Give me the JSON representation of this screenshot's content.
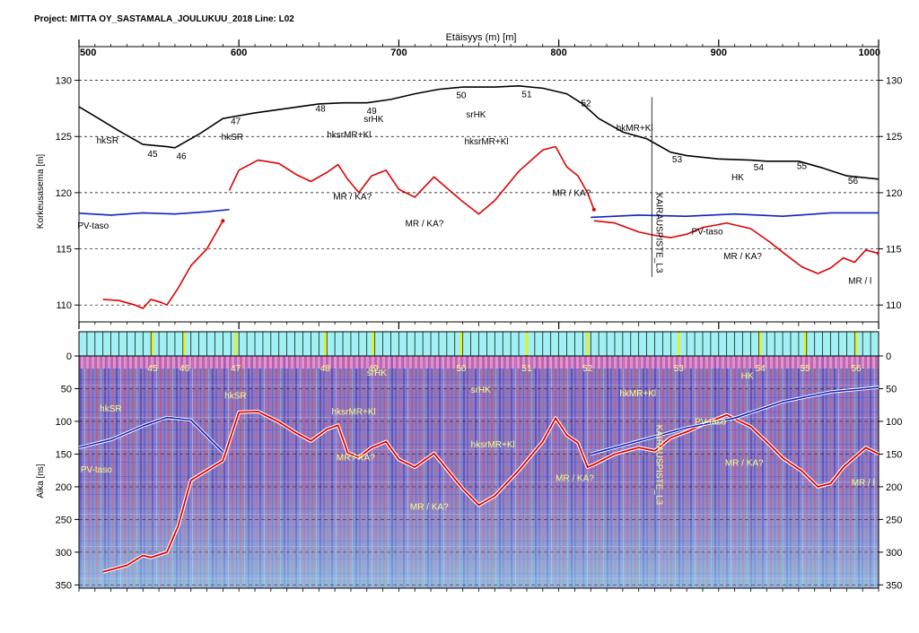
{
  "title": "Project: MITTA OY_SASTAMALA_JOULUKUU_2018  Line: L02",
  "colors": {
    "terrain": "#000000",
    "bedrock": "#e00000",
    "water_table": "#1020c0",
    "radar_pos": "#3a3ad0",
    "radar_neg": "#e83a3a",
    "radar_bg": "#8c7fc0",
    "marker_bar": "#a0f0f4"
  },
  "chart_data": [
    {
      "type": "line",
      "title": "Project: MITTA OY_SASTAMALA_JOULUKUU_2018  Line: L02",
      "xlabel": "Etäisyys (m) [m]",
      "ylabel": "Korkeusasema [m]",
      "xlim": [
        500,
        1000
      ],
      "ylim": [
        108.5,
        133
      ],
      "xticks": [
        500,
        600,
        700,
        800,
        900,
        1000
      ],
      "yticks": [
        110,
        115,
        120,
        125,
        130
      ],
      "grid": "horizontal dashed",
      "series": [
        {
          "role": "terrain",
          "x": [
            497,
            510,
            525,
            540,
            555,
            560,
            575,
            590,
            610,
            630,
            650,
            665,
            680,
            695,
            710,
            725,
            740,
            760,
            775,
            790,
            805,
            815,
            825,
            840,
            855,
            870,
            880,
            900,
            920,
            930,
            950,
            965,
            980,
            1000
          ],
          "y": [
            127.9,
            126.8,
            125.5,
            124.3,
            124.1,
            124.0,
            125.2,
            126.6,
            127.1,
            127.5,
            127.9,
            128.0,
            128.0,
            128.3,
            128.8,
            129.2,
            129.4,
            129.4,
            129.5,
            129.3,
            128.8,
            127.9,
            126.6,
            125.4,
            124.8,
            123.6,
            123.3,
            123.0,
            122.9,
            122.8,
            122.8,
            122.2,
            121.5,
            121.2
          ]
        },
        {
          "role": "water_table",
          "x": [
            497,
            520,
            540,
            560,
            580,
            594
          ],
          "y": [
            118.2,
            118.0,
            118.2,
            118.1,
            118.3,
            118.5
          ]
        },
        {
          "role": "water_table",
          "x": [
            820,
            850,
            880,
            910,
            940,
            970,
            1000
          ],
          "y": [
            117.8,
            118.0,
            117.9,
            118.1,
            117.9,
            118.2,
            118.2
          ]
        },
        {
          "role": "bedrock",
          "x": [
            515,
            525,
            530,
            535,
            540,
            545,
            552,
            555,
            562,
            570,
            580,
            590
          ],
          "y": [
            110.5,
            110.4,
            110.2,
            110.0,
            109.7,
            110.5,
            110.2,
            110.0,
            111.5,
            113.5,
            115.0,
            117.5
          ]
        },
        {
          "role": "bedrock",
          "x": [
            594,
            600,
            612,
            625,
            636,
            645,
            655,
            662,
            668,
            675,
            683,
            692,
            700,
            710,
            722,
            740,
            750,
            760,
            775,
            790,
            798,
            805,
            812,
            818,
            822
          ],
          "y": [
            120.2,
            122.0,
            122.9,
            122.6,
            121.6,
            121.0,
            121.8,
            122.5,
            121.2,
            120.0,
            121.5,
            122.0,
            120.3,
            119.6,
            121.4,
            119.2,
            118.1,
            119.3,
            121.9,
            123.8,
            124.1,
            122.3,
            121.5,
            120.0,
            118.5
          ]
        },
        {
          "role": "bedrock",
          "x": [
            822,
            835,
            850,
            860,
            870,
            880,
            890,
            905,
            920,
            932,
            940,
            952,
            962,
            970,
            978,
            985,
            992,
            1000
          ],
          "y": [
            117.5,
            117.3,
            116.5,
            116.2,
            116.0,
            116.3,
            116.9,
            117.3,
            116.8,
            115.6,
            114.7,
            113.4,
            112.8,
            113.3,
            114.2,
            113.8,
            114.9,
            114.6
          ]
        }
      ],
      "annotations": [
        {
          "text": "hkSR",
          "x": 511,
          "y": 124.4
        },
        {
          "text": "hkSR",
          "x": 589,
          "y": 124.7
        },
        {
          "text": "hksrMR+Kl",
          "x": 655,
          "y": 124.9
        },
        {
          "text": "srHK",
          "x": 678,
          "y": 126.3
        },
        {
          "text": "srHK",
          "x": 742,
          "y": 126.7
        },
        {
          "text": "hksrMR+Kl",
          "x": 741,
          "y": 124.3
        },
        {
          "text": "hkMR+Kl",
          "x": 836,
          "y": 125.5
        },
        {
          "text": "HK",
          "x": 908,
          "y": 121.1
        },
        {
          "text": "MR / KA?",
          "x": 659,
          "y": 119.4
        },
        {
          "text": "MR / KA?",
          "x": 704,
          "y": 117.0
        },
        {
          "text": "MR / KA?",
          "x": 796,
          "y": 119.7
        },
        {
          "text": "MR / KA?",
          "x": 903,
          "y": 114.1
        },
        {
          "text": "MR / l",
          "x": 981,
          "y": 111.9
        },
        {
          "text": "PV-taso",
          "x": 499,
          "y": 116.8
        },
        {
          "text": "PV-taso",
          "x": 883,
          "y": 116.3
        },
        {
          "text": "KAIRAUSPISTE_L3",
          "x": 861,
          "y": 120.0
        }
      ],
      "stations": [
        {
          "label": "45",
          "x": 546,
          "y": 123.2
        },
        {
          "label": "46",
          "x": 564,
          "y": 123.0
        },
        {
          "label": "47",
          "x": 598,
          "y": 126.1
        },
        {
          "label": "48",
          "x": 651,
          "y": 127.2
        },
        {
          "label": "49",
          "x": 683,
          "y": 127.0
        },
        {
          "label": "50",
          "x": 739,
          "y": 128.4
        },
        {
          "label": "51",
          "x": 780,
          "y": 128.5
        },
        {
          "label": "52",
          "x": 817,
          "y": 127.7
        },
        {
          "label": "53",
          "x": 874,
          "y": 122.7
        },
        {
          "label": "54",
          "x": 925,
          "y": 122.0
        },
        {
          "label": "55",
          "x": 952,
          "y": 122.1
        },
        {
          "label": "56",
          "x": 984,
          "y": 120.8
        }
      ]
    },
    {
      "type": "heatmap",
      "ylabel": "Aika [ns]",
      "xlim": [
        500,
        1000
      ],
      "ylim": [
        355,
        0
      ],
      "yticks": [
        0,
        50,
        100,
        150,
        200,
        250,
        300,
        350
      ],
      "grid": "horizontal dashed",
      "bedrock_reflector": {
        "x": [
          515,
          530,
          540,
          545,
          555,
          562,
          570,
          590,
          600,
          612,
          625,
          636,
          645,
          655,
          662,
          668,
          675,
          683,
          692,
          700,
          710,
          722,
          740,
          750,
          760,
          775,
          790,
          798,
          805,
          812,
          818,
          822,
          835,
          850,
          860,
          870,
          880,
          890,
          905,
          920,
          932,
          940,
          952,
          962,
          970,
          978,
          985,
          992,
          1000
        ],
        "y": [
          330,
          320,
          305,
          308,
          300,
          260,
          190,
          160,
          86,
          85,
          101,
          118,
          130,
          112,
          106,
          148,
          155,
          140,
          131,
          158,
          170,
          149,
          203,
          228,
          214,
          175,
          131,
          95,
          121,
          133,
          170,
          166,
          150,
          140,
          145,
          125,
          116,
          105,
          90,
          108,
          136,
          156,
          176,
          200,
          195,
          170,
          155,
          140,
          150
        ]
      },
      "water_reflector": {
        "x": [
          500,
          520,
          540,
          555,
          570,
          590
        ],
        "y": [
          140,
          128,
          107,
          94,
          98,
          147
        ]
      },
      "water_reflector_2": {
        "x": [
          820,
          850,
          880,
          910,
          940,
          970,
          1000
        ],
        "y": [
          150,
          130,
          110,
          95,
          70,
          55,
          48
        ]
      },
      "annotations": [
        {
          "text": "hkSR",
          "x": 513,
          "y": 85
        },
        {
          "text": "hkSR",
          "x": 591,
          "y": 65
        },
        {
          "text": "hksrMR+Kl",
          "x": 658,
          "y": 90
        },
        {
          "text": "srHK",
          "x": 680,
          "y": 30
        },
        {
          "text": "srHK",
          "x": 745,
          "y": 56
        },
        {
          "text": "hksrMR+Kl",
          "x": 745,
          "y": 140
        },
        {
          "text": "hkMR+Kl",
          "x": 838,
          "y": 62
        },
        {
          "text": "HK",
          "x": 914,
          "y": 35
        },
        {
          "text": "MR / KA?",
          "x": 661,
          "y": 160
        },
        {
          "text": "MR / KA?",
          "x": 707,
          "y": 235
        },
        {
          "text": "MR / KA?",
          "x": 798,
          "y": 191
        },
        {
          "text": "MR / KA?",
          "x": 904,
          "y": 168
        },
        {
          "text": "MR / l",
          "x": 983,
          "y": 198
        },
        {
          "text": "PV-taso",
          "x": 501,
          "y": 178
        },
        {
          "text": "PV-taso",
          "x": 885,
          "y": 105
        },
        {
          "text": "KAIRAUSPISTE_L3",
          "x": 861,
          "y": 105
        }
      ],
      "stations": [
        {
          "label": "45",
          "x": 546
        },
        {
          "label": "46",
          "x": 566
        },
        {
          "label": "47",
          "x": 598
        },
        {
          "label": "48",
          "x": 654
        },
        {
          "label": "49",
          "x": 684
        },
        {
          "label": "50",
          "x": 739
        },
        {
          "label": "51",
          "x": 780
        },
        {
          "label": "52",
          "x": 818
        },
        {
          "label": "53",
          "x": 875
        },
        {
          "label": "54",
          "x": 926
        },
        {
          "label": "55",
          "x": 954
        },
        {
          "label": "56",
          "x": 986
        }
      ]
    }
  ]
}
